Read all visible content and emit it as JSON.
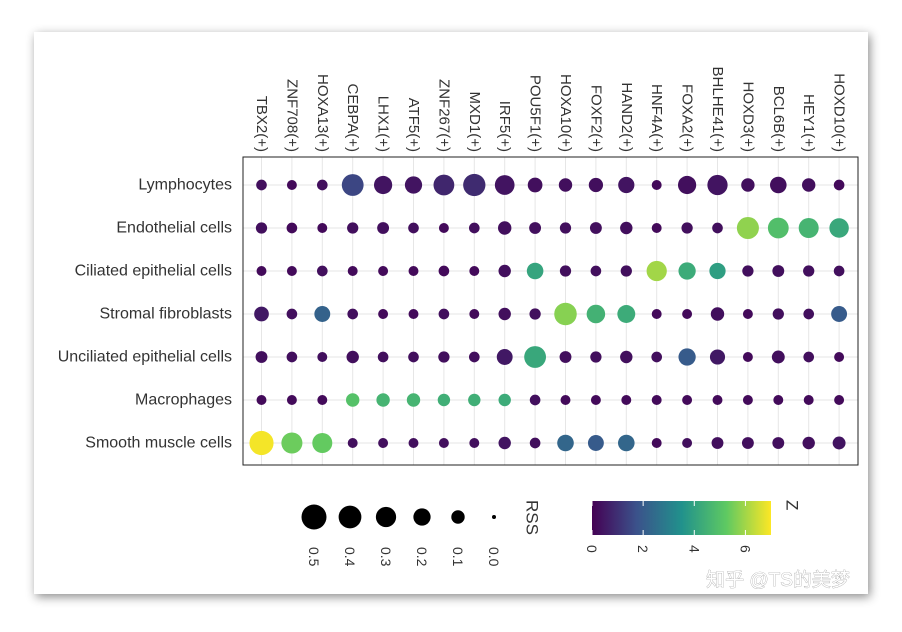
{
  "chart_data": {
    "type": "bubble-heatmap",
    "rows": [
      "Lymphocytes",
      "Endothelial cells",
      "Ciliated epithelial cells",
      "Stromal fibroblasts",
      "Unciliated epithelial cells",
      "Macrophages",
      "Smooth muscle cells"
    ],
    "columns": [
      "TBX2(+)",
      "ZNF708(+)",
      "HOXA13(+)",
      "CEBPA(+)",
      "LHX1(+)",
      "ATF5(+)",
      "ZNF267(+)",
      "MXD1(+)",
      "IRF5(+)",
      "POU5F1(+)",
      "HOXA10(+)",
      "FOXF2(+)",
      "HAND2(+)",
      "HNF4A(+)",
      "FOXA2(+)",
      "BHLHE41(+)",
      "HOXD3(+)",
      "BCL6B(+)",
      "HEY1(+)",
      "HOXD10(+)"
    ],
    "rss": [
      [
        0.05,
        0.04,
        0.05,
        0.36,
        0.23,
        0.2,
        0.32,
        0.38,
        0.28,
        0.13,
        0.1,
        0.12,
        0.17,
        0.04,
        0.23,
        0.3,
        0.1,
        0.18,
        0.1,
        0.05
      ],
      [
        0.06,
        0.05,
        0.04,
        0.06,
        0.07,
        0.05,
        0.04,
        0.05,
        0.1,
        0.07,
        0.06,
        0.07,
        0.08,
        0.04,
        0.06,
        0.05,
        0.37,
        0.32,
        0.29,
        0.27
      ],
      [
        0.04,
        0.04,
        0.05,
        0.04,
        0.04,
        0.04,
        0.05,
        0.04,
        0.08,
        0.18,
        0.06,
        0.05,
        0.06,
        0.3,
        0.2,
        0.17,
        0.06,
        0.07,
        0.06,
        0.05
      ],
      [
        0.13,
        0.05,
        0.16,
        0.05,
        0.04,
        0.04,
        0.05,
        0.04,
        0.08,
        0.06,
        0.39,
        0.24,
        0.22,
        0.04,
        0.04,
        0.1,
        0.04,
        0.06,
        0.05,
        0.16
      ],
      [
        0.07,
        0.05,
        0.04,
        0.08,
        0.05,
        0.05,
        0.06,
        0.05,
        0.16,
        0.36,
        0.07,
        0.06,
        0.08,
        0.05,
        0.2,
        0.14,
        0.04,
        0.09,
        0.05,
        0.04
      ],
      [
        0.04,
        0.04,
        0.04,
        0.1,
        0.1,
        0.1,
        0.08,
        0.08,
        0.08,
        0.05,
        0.04,
        0.04,
        0.04,
        0.04,
        0.04,
        0.04,
        0.04,
        0.04,
        0.04,
        0.04
      ],
      [
        0.46,
        0.33,
        0.29,
        0.04,
        0.04,
        0.04,
        0.04,
        0.04,
        0.08,
        0.05,
        0.18,
        0.16,
        0.18,
        0.04,
        0.04,
        0.07,
        0.07,
        0.07,
        0.08,
        0.09
      ]
    ],
    "z": [
      [
        0.3,
        0.2,
        0.3,
        1.5,
        0.4,
        0.4,
        0.8,
        0.9,
        0.4,
        0.3,
        0.3,
        0.3,
        0.4,
        0.2,
        0.3,
        0.4,
        0.3,
        0.3,
        0.3,
        0.2
      ],
      [
        0.3,
        0.2,
        0.2,
        0.3,
        0.3,
        0.3,
        0.2,
        0.3,
        0.3,
        0.3,
        0.3,
        0.3,
        0.3,
        0.2,
        0.3,
        0.3,
        5.8,
        4.9,
        4.6,
        4.2
      ],
      [
        0.2,
        0.2,
        0.3,
        0.2,
        0.2,
        0.2,
        0.2,
        0.2,
        0.3,
        4.1,
        0.3,
        0.3,
        0.3,
        6.0,
        4.3,
        3.9,
        0.3,
        0.3,
        0.3,
        0.3
      ],
      [
        0.5,
        0.3,
        2.2,
        0.3,
        0.2,
        0.2,
        0.3,
        0.2,
        0.3,
        0.3,
        5.7,
        4.5,
        4.3,
        0.2,
        0.2,
        0.3,
        0.2,
        0.3,
        0.3,
        2.0
      ],
      [
        0.3,
        0.3,
        0.3,
        0.3,
        0.3,
        0.3,
        0.3,
        0.3,
        0.5,
        4.2,
        0.3,
        0.3,
        0.3,
        0.3,
        2.0,
        0.5,
        0.2,
        0.3,
        0.3,
        0.2
      ],
      [
        0.2,
        0.2,
        0.2,
        5.0,
        4.6,
        4.6,
        4.4,
        4.4,
        4.3,
        0.3,
        0.2,
        0.2,
        0.2,
        0.2,
        0.2,
        0.2,
        0.2,
        0.2,
        0.2,
        0.2
      ],
      [
        6.9,
        5.4,
        5.3,
        0.3,
        0.3,
        0.3,
        0.3,
        0.3,
        0.4,
        0.3,
        2.3,
        2.0,
        2.3,
        0.2,
        0.3,
        0.3,
        0.3,
        0.3,
        0.3,
        0.4
      ]
    ],
    "size_legend": {
      "title": "RSS",
      "values": [
        0.5,
        0.4,
        0.3,
        0.2,
        0.1,
        0.0
      ],
      "labels": [
        "0.5",
        "0.4",
        "0.3",
        "0.2",
        "0.1",
        "0.0"
      ]
    },
    "color_legend": {
      "title": "Z",
      "range": [
        0,
        7
      ],
      "ticks": [
        0,
        2,
        4,
        6
      ],
      "tick_labels": [
        "0",
        "2",
        "4",
        "6"
      ],
      "colormap": "viridis"
    },
    "grid": true
  },
  "colors": {
    "panel_border": "#222222",
    "grid": "#e6e6e6",
    "text": "#333333",
    "viridis_stops": [
      "#440154",
      "#3b528b",
      "#21918c",
      "#5ec962",
      "#fde725"
    ]
  },
  "watermark": "知乎 @TS的美梦"
}
